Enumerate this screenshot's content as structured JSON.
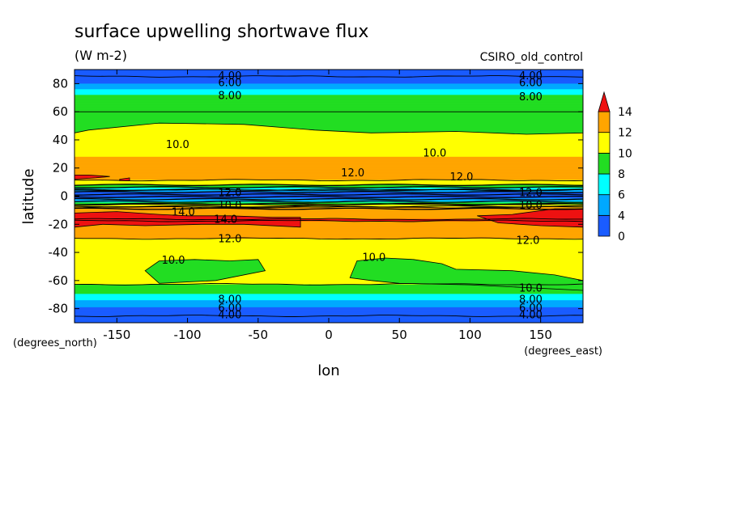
{
  "chart_data": {
    "type": "heatmap",
    "title": "surface upwelling shortwave flux",
    "units": "(W m-2)",
    "dataset": "CSIRO_old_control",
    "xlabel": "lon",
    "ylabel": "latitude",
    "x_unit": "(degrees_east)",
    "y_unit": "(degrees_north)",
    "xlim": [
      -180,
      180
    ],
    "ylim": [
      -90,
      90
    ],
    "x_ticks": [
      -150,
      -100,
      -50,
      0,
      50,
      100,
      150
    ],
    "y_ticks": [
      -80,
      -60,
      -40,
      -20,
      0,
      20,
      40,
      60,
      80
    ],
    "x_tick_labels": [
      "-150",
      "-100",
      "-50",
      "0",
      "50",
      "100",
      "150"
    ],
    "y_tick_labels": [
      "-80",
      "-60",
      "-40",
      "-20",
      "0",
      "20",
      "40",
      "60",
      "80"
    ],
    "colorbar": {
      "levels": [
        0,
        2,
        4,
        6,
        8,
        10,
        12,
        14
      ],
      "tick_labels": [
        "0",
        "4",
        "6",
        "8",
        "10",
        "12",
        "14"
      ],
      "colors": [
        "#1a5cff",
        "#00a8ff",
        "#00ffff",
        "#22dd22",
        "#ffff00",
        "#ffa500",
        "#ee1111"
      ]
    },
    "zonal_profile": {
      "lat": [
        -90,
        -82,
        -76,
        -72,
        -67,
        -60,
        -45,
        -40,
        -33,
        -26,
        -22,
        -17,
        -12,
        -8,
        -5,
        -3,
        0,
        3,
        5,
        8,
        12,
        16,
        22,
        28,
        40,
        48,
        55,
        66,
        72,
        76,
        82,
        90
      ],
      "value": [
        0.5,
        3,
        5,
        7,
        9,
        10.6,
        10.6,
        11,
        11.6,
        12.6,
        13.4,
        14.1,
        13.4,
        12.2,
        9,
        5,
        3,
        4,
        7,
        10,
        12.3,
        12.7,
        12.5,
        12,
        11,
        10.5,
        9.5,
        8.6,
        8,
        6,
        3,
        0.5
      ]
    },
    "contour_labels": [
      {
        "text": "4.00",
        "lon": -70,
        "lat": 86
      },
      {
        "text": "6.00",
        "lon": -70,
        "lat": 81
      },
      {
        "text": "8.00",
        "lon": -70,
        "lat": 72
      },
      {
        "text": "4.00",
        "lon": 143,
        "lat": 86
      },
      {
        "text": "6.00",
        "lon": 143,
        "lat": 81
      },
      {
        "text": "8.00",
        "lon": 143,
        "lat": 71
      },
      {
        "text": "10.0",
        "lon": -107,
        "lat": 37
      },
      {
        "text": "10.0",
        "lon": 75,
        "lat": 31
      },
      {
        "text": "12.0",
        "lon": 17,
        "lat": 17
      },
      {
        "text": "12.0",
        "lon": 94,
        "lat": 14
      },
      {
        "text": "14.0",
        "lon": -103,
        "lat": -11
      },
      {
        "text": "14.0",
        "lon": -73,
        "lat": -16
      },
      {
        "text": "12.0",
        "lon": -70,
        "lat": -30
      },
      {
        "text": "12.0",
        "lon": 141,
        "lat": -31
      },
      {
        "text": "10.0",
        "lon": -110,
        "lat": -45
      },
      {
        "text": "10.0",
        "lon": 32,
        "lat": -43
      },
      {
        "text": "10.0",
        "lon": 143,
        "lat": -65
      },
      {
        "text": "8.00",
        "lon": -70,
        "lat": -73
      },
      {
        "text": "6.00",
        "lon": -70,
        "lat": -79
      },
      {
        "text": "4.00",
        "lon": -70,
        "lat": -84
      },
      {
        "text": "8.00",
        "lon": 143,
        "lat": -73
      },
      {
        "text": "6.00",
        "lon": 143,
        "lat": -79
      },
      {
        "text": "4.00",
        "lon": 143,
        "lat": -84
      },
      {
        "text": "12.0",
        "lon": -70,
        "lat": 3
      },
      {
        "text": "10.0",
        "lon": -70,
        "lat": -6
      },
      {
        "text": "12.0",
        "lon": 143,
        "lat": 3
      },
      {
        "text": "10.0",
        "lon": 143,
        "lat": -6
      }
    ]
  }
}
